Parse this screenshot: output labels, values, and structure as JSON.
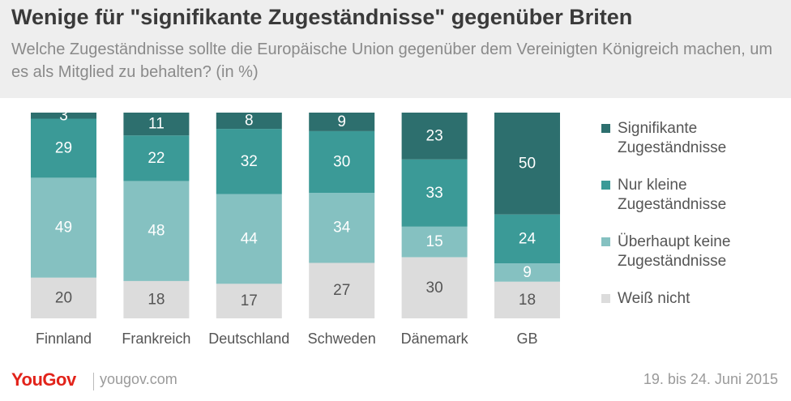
{
  "header": {
    "title": "Wenige für \"signifikante Zugeständnisse\" gegenüber Briten",
    "subtitle": "Welche Zugeständnisse sollte die Europäische Union gegenüber dem Vereinigten Königreich machen, um es als Mitglied zu behalten? (in %)"
  },
  "chart_data": {
    "type": "bar",
    "stacked": true,
    "title": "Wenige für \"signifikante Zugeständnisse\" gegenüber Briten",
    "subtitle": "Welche Zugeständnisse sollte die Europäische Union gegenüber dem Vereinigten Königreich machen, um es als Mitglied zu behalten? (in %)",
    "categories": [
      "Finnland",
      "Frankreich",
      "Deutschland",
      "Schweden",
      "Dänemark",
      "GB"
    ],
    "series": [
      {
        "name": "Weiß nicht",
        "values": [
          20,
          18,
          17,
          27,
          30,
          18
        ],
        "color": "#dcdcdc",
        "label_color": "#555555"
      },
      {
        "name": "Überhaupt keine Zugeständnisse",
        "values": [
          49,
          48,
          44,
          34,
          15,
          9
        ],
        "color": "#85c1c1",
        "label_color": "#ffffff"
      },
      {
        "name": "Nur kleine Zugeständnisse",
        "values": [
          29,
          22,
          32,
          30,
          33,
          24
        ],
        "color": "#3b9a97",
        "label_color": "#ffffff"
      },
      {
        "name": "Signifikante Zugeständnisse",
        "values": [
          3,
          11,
          8,
          9,
          23,
          50
        ],
        "color": "#2d6f6e",
        "label_color": "#ffffff"
      }
    ],
    "legend_position": "right",
    "grid": false
  },
  "legend": {
    "items": [
      {
        "label": "Signifikante Zugeständnisse",
        "color": "#2d6f6e"
      },
      {
        "label": "Nur kleine Zugeständnisse",
        "color": "#3b9a97"
      },
      {
        "label": "Überhaupt keine Zugeständnisse",
        "color": "#85c1c1"
      },
      {
        "label": "Weiß nicht",
        "color": "#dcdcdc"
      }
    ]
  },
  "footer": {
    "brand": "YouGov",
    "url": "yougov.com",
    "date": "19. bis 24. Juni 2015"
  }
}
